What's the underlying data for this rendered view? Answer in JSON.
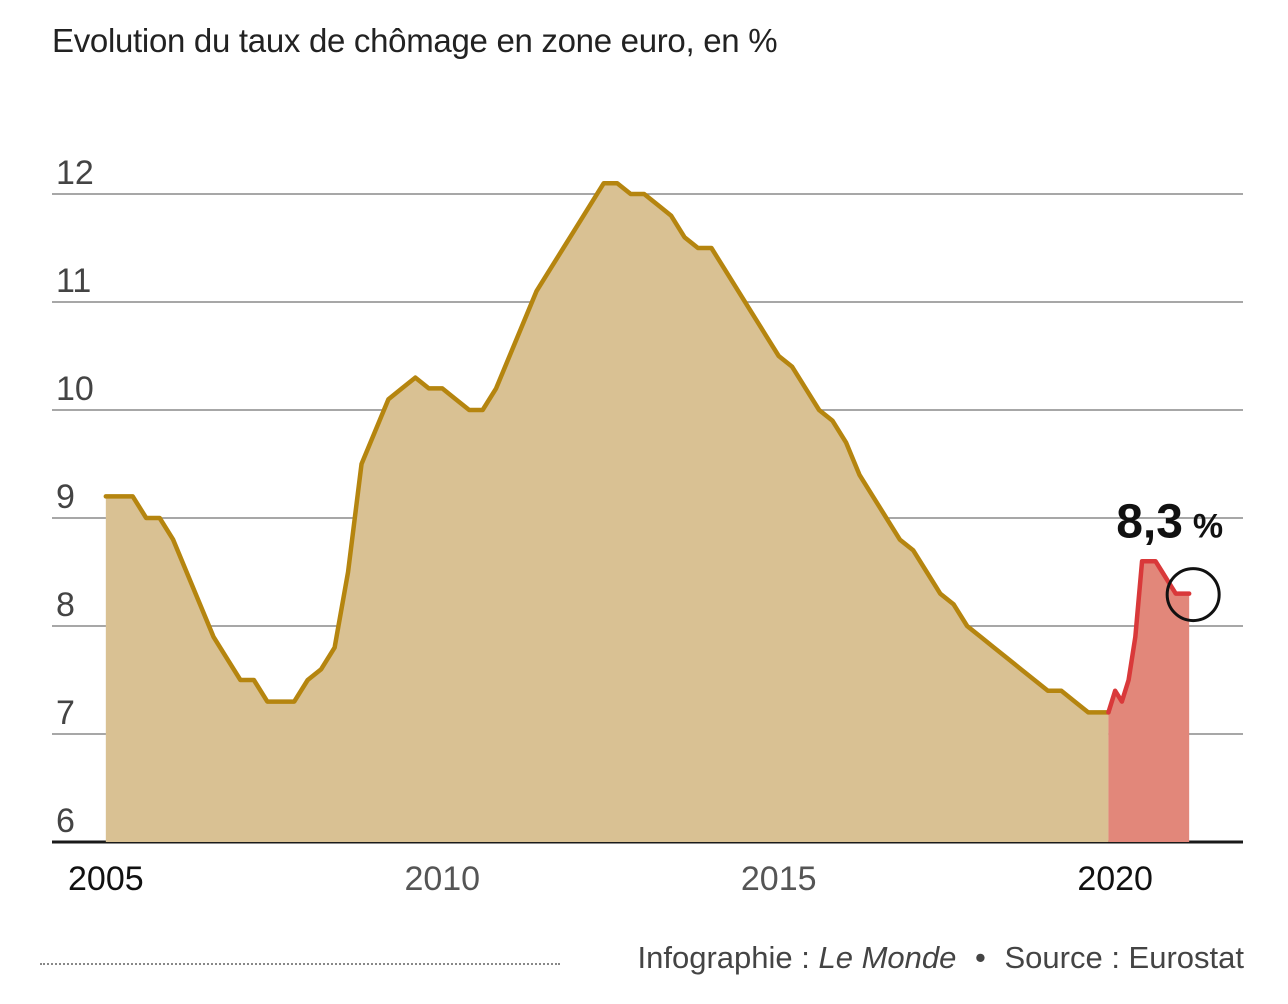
{
  "chart_data": {
    "type": "area",
    "title": "Evolution du taux de chômage en zone euro, en %",
    "ylim": [
      6,
      12.5
    ],
    "xlim": [
      2004.2,
      2021.9
    ],
    "y_ticks": [
      "6",
      "7",
      "8",
      "9",
      "10",
      "11",
      "12"
    ],
    "x_ticks": [
      "2005",
      "2010",
      "2015",
      "2020"
    ],
    "grid": true,
    "highlight_label": {
      "value": "8,3",
      "unit": "%"
    },
    "colors": {
      "series_main_line": "#b5850f",
      "series_main_fill": "#d9c193",
      "series_recent_line": "#d9393a",
      "series_recent_fill": "#e2877a",
      "grid": "#8a8a8a",
      "axis": "#1a1a1a"
    },
    "series": [
      {
        "x": [
          2005.0,
          2005.2,
          2005.4,
          2005.6,
          2005.8,
          2006.0,
          2006.2,
          2006.4,
          2006.6,
          2006.8,
          2007.0,
          2007.2,
          2007.4,
          2007.6,
          2007.8,
          2008.0,
          2008.2,
          2008.4,
          2008.6,
          2008.8,
          2009.0,
          2009.2,
          2009.4,
          2009.6,
          2009.8,
          2010.0,
          2010.2,
          2010.4,
          2010.6,
          2010.8,
          2011.0,
          2011.2,
          2011.4,
          2011.6,
          2011.8,
          2012.0,
          2012.2,
          2012.4,
          2012.6,
          2012.8,
          2013.0,
          2013.2,
          2013.4,
          2013.6,
          2013.8,
          2014.0,
          2014.2,
          2014.4,
          2014.6,
          2014.8,
          2015.0,
          2015.2,
          2015.4,
          2015.6,
          2015.8,
          2016.0,
          2016.2,
          2016.4,
          2016.6,
          2016.8,
          2017.0,
          2017.2,
          2017.4,
          2017.6,
          2017.8,
          2018.0,
          2018.2,
          2018.4,
          2018.6,
          2018.8,
          2019.0,
          2019.2,
          2019.4,
          2019.6,
          2019.8,
          2019.9
        ],
        "values": [
          9.2,
          9.2,
          9.2,
          9.0,
          9.0,
          8.8,
          8.5,
          8.2,
          7.9,
          7.7,
          7.5,
          7.5,
          7.3,
          7.3,
          7.3,
          7.5,
          7.6,
          7.8,
          8.5,
          9.5,
          9.8,
          10.1,
          10.2,
          10.3,
          10.2,
          10.2,
          10.1,
          10.0,
          10.0,
          10.2,
          10.5,
          10.8,
          11.1,
          11.3,
          11.5,
          11.7,
          11.9,
          12.1,
          12.1,
          12.0,
          12.0,
          11.9,
          11.8,
          11.6,
          11.5,
          11.5,
          11.3,
          11.1,
          10.9,
          10.7,
          10.5,
          10.4,
          10.2,
          10.0,
          9.9,
          9.7,
          9.4,
          9.2,
          9.0,
          8.8,
          8.7,
          8.5,
          8.3,
          8.2,
          8.0,
          7.9,
          7.8,
          7.7,
          7.6,
          7.5,
          7.4,
          7.4,
          7.3,
          7.2,
          7.2,
          7.2
        ]
      },
      {
        "x": [
          2019.9,
          2020.0,
          2020.1,
          2020.2,
          2020.3,
          2020.4,
          2020.5,
          2020.6,
          2020.7,
          2020.8,
          2020.9,
          2021.0,
          2021.1
        ],
        "values": [
          7.2,
          7.4,
          7.3,
          7.5,
          7.9,
          8.6,
          8.6,
          8.6,
          8.5,
          8.4,
          8.3,
          8.3,
          8.3
        ]
      }
    ]
  },
  "credit": {
    "prefix": "Infographie :",
    "brand": "Le Monde",
    "separator": "•",
    "source": "Source : Eurostat"
  }
}
